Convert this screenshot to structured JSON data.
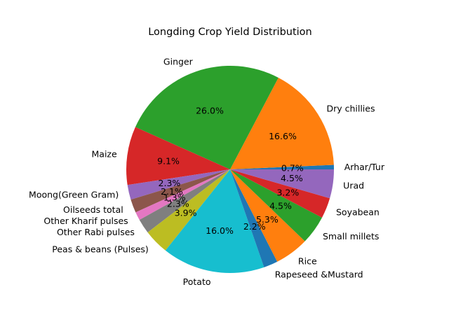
{
  "chart_data": {
    "type": "pie",
    "title": "Longding Crop Yield Distribution",
    "start_angle_deg": 0,
    "counterclockwise": true,
    "slices": [
      {
        "label": "Arhar/Tur",
        "percent": 0.7,
        "pct_text": "0.7%",
        "color": "#1f77b4"
      },
      {
        "label": "Dry chillies",
        "percent": 16.6,
        "pct_text": "16.6%",
        "color": "#ff7f0e"
      },
      {
        "label": "Ginger",
        "percent": 26.0,
        "pct_text": "26.0%",
        "color": "#2ca02c"
      },
      {
        "label": "Maize",
        "percent": 9.1,
        "pct_text": "9.1%",
        "color": "#d62728"
      },
      {
        "label": "Moong(Green Gram)",
        "percent": 2.3,
        "pct_text": "2.3%",
        "color": "#9467bd"
      },
      {
        "label": "Oilseeds total",
        "percent": 2.1,
        "pct_text": "2.1%",
        "color": "#8c564b"
      },
      {
        "label": "Other Kharif pulses",
        "percent": 1.3,
        "pct_text": "1.3%",
        "color": "#e377c2"
      },
      {
        "label": "Other Rabi pulses",
        "percent": 2.3,
        "pct_text": "2.3%",
        "color": "#7f7f7f"
      },
      {
        "label": "Peas & beans (Pulses)",
        "percent": 3.9,
        "pct_text": "3.9%",
        "color": "#bcbd22"
      },
      {
        "label": "Potato",
        "percent": 16.0,
        "pct_text": "16.0%",
        "color": "#17becf"
      },
      {
        "label": "Rapeseed &Mustard",
        "percent": 2.2,
        "pct_text": "2.2%",
        "color": "#1f77b4"
      },
      {
        "label": "Rice",
        "percent": 5.3,
        "pct_text": "5.3%",
        "color": "#ff7f0e"
      },
      {
        "label": "Small millets",
        "percent": 4.5,
        "pct_text": "4.5%",
        "color": "#2ca02c"
      },
      {
        "label": "Soyabean",
        "percent": 3.2,
        "pct_text": "3.2%",
        "color": "#d62728"
      },
      {
        "label": "Urad",
        "percent": 4.5,
        "pct_text": "4.5%",
        "color": "#9467bd"
      }
    ]
  }
}
